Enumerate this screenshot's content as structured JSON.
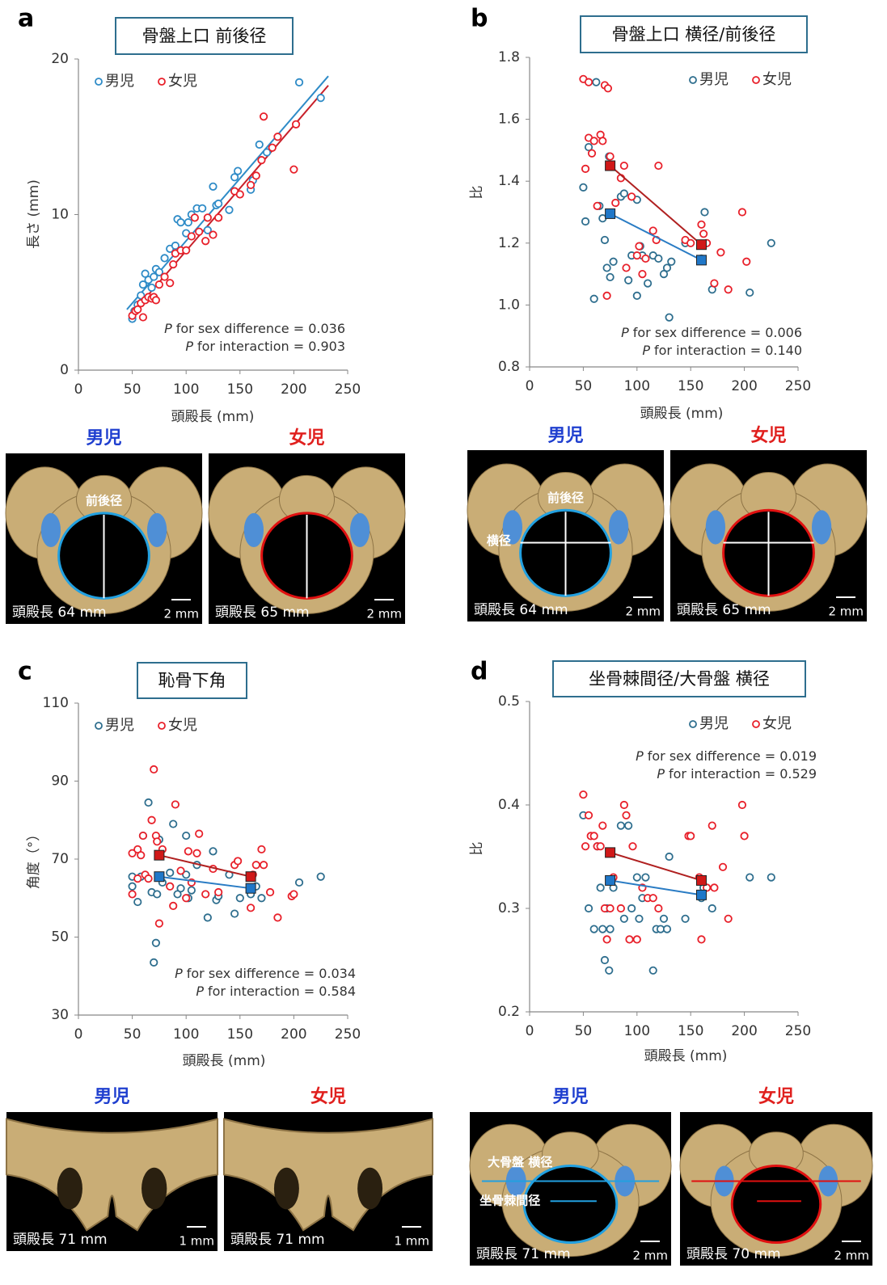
{
  "chart_data": [
    {
      "type": "scatter",
      "panel_label": "a",
      "title": "骨盤上口 前後径",
      "xlabel": "頭殿長 (mm)",
      "ylabel": "長さ (mm)",
      "xlim": [
        0,
        250
      ],
      "xticks": [
        0,
        50,
        100,
        150,
        200,
        250
      ],
      "ylim": [
        0,
        20
      ],
      "yticks": [
        0,
        10,
        20
      ],
      "legend_position": "upper left",
      "series": [
        {
          "name": "男児",
          "color": "#2e8bc7",
          "x": [
            50,
            52,
            55,
            58,
            60,
            62,
            65,
            68,
            70,
            72,
            75,
            80,
            85,
            90,
            92,
            95,
            100,
            102,
            105,
            110,
            115,
            120,
            125,
            128,
            130,
            140,
            145,
            148,
            160,
            162,
            168,
            175,
            205,
            225
          ],
          "values": [
            3.3,
            3.8,
            4.2,
            4.8,
            5.5,
            6.2,
            5.8,
            5.3,
            6.0,
            6.5,
            6.3,
            7.2,
            7.8,
            8.0,
            9.7,
            9.5,
            8.8,
            9.5,
            10.0,
            10.4,
            10.4,
            9.0,
            11.8,
            10.6,
            10.7,
            10.3,
            12.4,
            12.8,
            11.6,
            12.2,
            14.5,
            14.0,
            18.5,
            17.5
          ]
        },
        {
          "name": "女児",
          "color": "#e8202a",
          "x": [
            50,
            53,
            55,
            58,
            60,
            62,
            65,
            68,
            70,
            72,
            75,
            80,
            85,
            88,
            90,
            95,
            100,
            105,
            108,
            112,
            118,
            120,
            125,
            130,
            145,
            150,
            160,
            165,
            170,
            172,
            180,
            185,
            200,
            202
          ],
          "values": [
            3.5,
            3.8,
            3.9,
            4.3,
            3.4,
            4.5,
            4.7,
            4.6,
            4.7,
            4.5,
            5.5,
            6.0,
            5.6,
            6.8,
            7.5,
            7.7,
            7.7,
            8.6,
            9.8,
            8.9,
            8.3,
            9.8,
            8.7,
            9.8,
            11.5,
            11.3,
            11.9,
            12.5,
            13.5,
            16.3,
            14.3,
            15.0,
            12.9,
            15.8
          ]
        }
      ],
      "trend_lines": [
        {
          "color": "#2e8bc7",
          "x": [
            45,
            232
          ],
          "values": [
            3.9,
            18.9
          ]
        },
        {
          "color": "#c8202a",
          "x": [
            47,
            232
          ],
          "values": [
            3.4,
            18.3
          ]
        }
      ],
      "annotations": [
        {
          "italic": "P",
          "text": "for sex difference = 0.036"
        },
        {
          "italic": "P",
          "text": "for interaction = 0.903"
        }
      ],
      "images": [
        {
          "label": "男児",
          "label_color": "#1f3fcf",
          "outline": "#22a0e0",
          "caption": "頭殿長 64 mm",
          "scale": "2 mm",
          "annotations": [
            "前後径"
          ]
        },
        {
          "label": "女児",
          "label_color": "#e0201e",
          "outline": "#e01010",
          "caption": "頭殿長 65 mm",
          "scale": "2 mm",
          "annotations": []
        }
      ]
    },
    {
      "type": "scatter",
      "panel_label": "b",
      "title": "骨盤上口 横径/前後径",
      "xlabel": "頭殿長 (mm)",
      "ylabel": "比",
      "xlim": [
        0,
        250
      ],
      "xticks": [
        0,
        50,
        100,
        150,
        200,
        250
      ],
      "ylim": [
        0.8,
        1.8
      ],
      "yticks": [
        0.8,
        {
          "value": 1,
          "label": "1.0"
        },
        1.2,
        1.4,
        1.6,
        1.8
      ],
      "legend_position": "upper right",
      "series": [
        {
          "name": "男児",
          "color": "#2e6e8e",
          "x": [
            50,
            52,
            55,
            60,
            62,
            65,
            68,
            70,
            72,
            74,
            75,
            78,
            85,
            88,
            92,
            95,
            100,
            100,
            103,
            105,
            110,
            115,
            120,
            125,
            128,
            130,
            132,
            145,
            160,
            163,
            170,
            205,
            225
          ],
          "values": [
            1.38,
            1.27,
            1.51,
            1.02,
            1.72,
            1.32,
            1.28,
            1.21,
            1.12,
            1.48,
            1.09,
            1.14,
            1.35,
            1.36,
            1.08,
            1.16,
            1.03,
            1.34,
            1.19,
            1.16,
            1.07,
            1.16,
            1.15,
            1.1,
            1.12,
            0.96,
            1.14,
            1.2,
            1.15,
            1.3,
            1.05,
            1.04,
            1.2
          ]
        },
        {
          "name": "女児",
          "color": "#e8202a",
          "x": [
            50,
            52,
            55,
            55,
            58,
            60,
            63,
            66,
            68,
            70,
            72,
            73,
            75,
            80,
            85,
            88,
            90,
            95,
            100,
            102,
            105,
            108,
            115,
            118,
            120,
            145,
            150,
            160,
            162,
            165,
            172,
            178,
            185,
            198,
            202
          ],
          "values": [
            1.73,
            1.44,
            1.72,
            1.54,
            1.49,
            1.53,
            1.32,
            1.55,
            1.53,
            1.71,
            1.03,
            1.7,
            1.48,
            1.33,
            1.41,
            1.45,
            1.12,
            1.35,
            1.16,
            1.19,
            1.1,
            1.15,
            1.24,
            1.21,
            1.45,
            1.21,
            1.2,
            1.26,
            1.23,
            1.2,
            1.07,
            1.17,
            1.05,
            1.3,
            1.14
          ]
        }
      ],
      "group_means": [
        {
          "color": "#1f77c8",
          "line": "#2a7cc4",
          "x": [
            75,
            160
          ],
          "values": [
            1.295,
            1.145
          ]
        },
        {
          "color": "#d01818",
          "line": "#b02020",
          "x": [
            75,
            160
          ],
          "values": [
            1.45,
            1.195
          ]
        }
      ],
      "annotations": [
        {
          "italic": "P",
          "text": "for sex difference = 0.006"
        },
        {
          "italic": "P",
          "text": "for interaction = 0.140"
        }
      ],
      "images": [
        {
          "label": "男児",
          "label_color": "#1f3fcf",
          "outline": "#22a0e0",
          "caption": "頭殿長 64 mm",
          "scale": "2 mm",
          "annotations": [
            "前後径",
            "横径"
          ]
        },
        {
          "label": "女児",
          "label_color": "#e0201e",
          "outline": "#e01010",
          "caption": "頭殿長 65 mm",
          "scale": "2 mm",
          "annotations": []
        }
      ]
    },
    {
      "type": "scatter",
      "panel_label": "c",
      "title": "恥骨下角",
      "xlabel": "頭殿長 (mm)",
      "ylabel": "角度（°）",
      "xlim": [
        0,
        250
      ],
      "xticks": [
        0,
        50,
        100,
        150,
        200,
        250
      ],
      "ylim": [
        30,
        110
      ],
      "yticks": [
        30,
        50,
        70,
        90,
        110
      ],
      "legend_position": "upper left",
      "series": [
        {
          "name": "男児",
          "color": "#2e6e8e",
          "x": [
            50,
            50,
            55,
            58,
            60,
            65,
            68,
            70,
            72,
            73,
            75,
            78,
            85,
            88,
            92,
            95,
            100,
            100,
            102,
            105,
            110,
            120,
            125,
            128,
            130,
            140,
            145,
            150,
            160,
            165,
            170,
            205,
            225
          ],
          "values": [
            65.5,
            63,
            59,
            65.5,
            76,
            84.5,
            61.5,
            43.5,
            48.5,
            61,
            75,
            64,
            66.5,
            79,
            61,
            62.5,
            66,
            76,
            60,
            62,
            68.5,
            55,
            72,
            59.5,
            60.5,
            66,
            56,
            60,
            61,
            63,
            60,
            64,
            65.5
          ]
        },
        {
          "name": "女児",
          "color": "#e8202a",
          "x": [
            50,
            50,
            55,
            55,
            58,
            60,
            62,
            65,
            68,
            70,
            72,
            73,
            75,
            78,
            85,
            88,
            90,
            95,
            100,
            102,
            105,
            110,
            112,
            118,
            125,
            130,
            145,
            148,
            160,
            162,
            165,
            170,
            172,
            178,
            185,
            198,
            200
          ],
          "values": [
            71.5,
            61,
            72.5,
            65,
            71,
            76,
            66,
            65,
            80,
            93,
            76,
            74.5,
            53.5,
            72.5,
            63,
            58,
            84,
            67,
            60,
            72,
            64,
            71.5,
            76.5,
            61,
            67.5,
            61.5,
            68.5,
            69.5,
            57.5,
            66,
            68.5,
            72.5,
            68.5,
            61.5,
            55,
            60.5,
            61
          ]
        }
      ],
      "group_means": [
        {
          "color": "#1f77c8",
          "line": "#2a7cc4",
          "x": [
            75,
            160
          ],
          "values": [
            65.5,
            62.5
          ]
        },
        {
          "color": "#d01818",
          "line": "#b02020",
          "x": [
            75,
            160
          ],
          "values": [
            71,
            65.5
          ]
        }
      ],
      "annotations": [
        {
          "italic": "P",
          "text": "for sex difference = 0.034"
        },
        {
          "italic": "P",
          "text": "for interaction = 0.584"
        }
      ],
      "images": [
        {
          "label": "男児",
          "label_color": "#1f3fcf",
          "outline": "",
          "caption": "頭殿長 71 mm",
          "scale": "1 mm",
          "annotations": []
        },
        {
          "label": "女児",
          "label_color": "#e0201e",
          "outline": "",
          "caption": "頭殿長 71 mm",
          "scale": "1 mm",
          "annotations": []
        }
      ]
    },
    {
      "type": "scatter",
      "panel_label": "d",
      "title": "坐骨棘間径/大骨盤 横径",
      "xlabel": "頭殿長 (mm)",
      "ylabel": "比",
      "xlim": [
        0,
        250
      ],
      "xticks": [
        0,
        50,
        100,
        150,
        200,
        250
      ],
      "ylim": [
        0.2,
        0.5
      ],
      "yticks": [
        0.2,
        0.3,
        0.4,
        0.5
      ],
      "legend_position": "upper right",
      "series": [
        {
          "name": "男児",
          "color": "#2e6e8e",
          "x": [
            50,
            55,
            60,
            63,
            66,
            68,
            70,
            72,
            74,
            75,
            78,
            85,
            88,
            92,
            95,
            100,
            102,
            105,
            108,
            115,
            118,
            122,
            125,
            128,
            130,
            145,
            160,
            162,
            170,
            205,
            225
          ],
          "values": [
            0.39,
            0.3,
            0.28,
            0.36,
            0.32,
            0.28,
            0.25,
            0.3,
            0.24,
            0.28,
            0.32,
            0.38,
            0.29,
            0.38,
            0.3,
            0.33,
            0.29,
            0.31,
            0.33,
            0.24,
            0.28,
            0.28,
            0.29,
            0.28,
            0.35,
            0.29,
            0.31,
            0.32,
            0.3,
            0.33,
            0.33
          ]
        },
        {
          "name": "女児",
          "color": "#e8202a",
          "x": [
            50,
            52,
            55,
            57,
            60,
            63,
            66,
            68,
            70,
            72,
            75,
            78,
            85,
            88,
            90,
            93,
            96,
            100,
            105,
            110,
            115,
            120,
            148,
            150,
            158,
            160,
            165,
            170,
            172,
            180,
            185,
            198,
            200
          ],
          "values": [
            0.41,
            0.36,
            0.39,
            0.37,
            0.37,
            0.36,
            0.36,
            0.38,
            0.3,
            0.27,
            0.3,
            0.33,
            0.3,
            0.4,
            0.39,
            0.27,
            0.36,
            0.27,
            0.32,
            0.31,
            0.31,
            0.3,
            0.37,
            0.37,
            0.33,
            0.27,
            0.32,
            0.38,
            0.32,
            0.34,
            0.29,
            0.4,
            0.37
          ]
        }
      ],
      "group_means": [
        {
          "color": "#1f77c8",
          "line": "#2a7cc4",
          "x": [
            75,
            160
          ],
          "values": [
            0.327,
            0.313
          ]
        },
        {
          "color": "#d01818",
          "line": "#b02020",
          "x": [
            75,
            160
          ],
          "values": [
            0.354,
            0.327
          ]
        }
      ],
      "annotations": [
        {
          "italic": "P",
          "text": "for sex difference = 0.019"
        },
        {
          "italic": "P",
          "text": "for interaction = 0.529"
        }
      ],
      "images": [
        {
          "label": "男児",
          "label_color": "#1f3fcf",
          "outline": "#22a0e0",
          "caption": "頭殿長 71 mm",
          "scale": "2 mm",
          "annotations": [
            "大骨盤 横径",
            "坐骨棘間径"
          ]
        },
        {
          "label": "女児",
          "label_color": "#e0201e",
          "outline": "#e01010",
          "caption": "頭殿長 70 mm",
          "scale": "2 mm",
          "annotations": []
        }
      ]
    }
  ]
}
